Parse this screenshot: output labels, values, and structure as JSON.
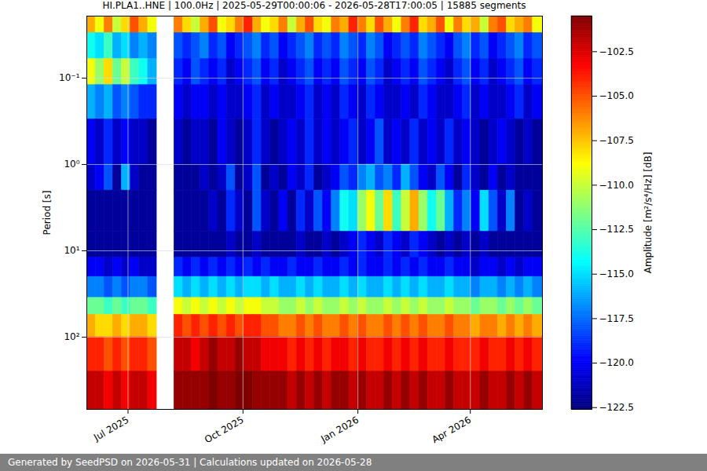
{
  "chart_data": {
    "type": "heatmap",
    "title": "HI.PLA1..HNE | 100.0Hz | 2025-05-29T00:00:06 - 2026-05-28T17:00:05 | 15885 segments",
    "footer": "Generated by SeedPSD on 2026-05-31 | Calculations updated on 2026-05-28",
    "ylabel": "Period [s]",
    "colorbar_label": "Amplitude [m²/s⁴/Hz] [dB]",
    "log": "y",
    "grid": true,
    "xlim": [
      "2025-05-29T00:00:06",
      "2026-05-28T17:00:05"
    ],
    "xticks": [
      {
        "value": "2025-07-01",
        "label": "Jul 2025"
      },
      {
        "value": "2025-10-01",
        "label": "Oct 2025"
      },
      {
        "value": "2026-01-01",
        "label": "Jan 2026"
      },
      {
        "value": "2026-04-01",
        "label": "Apr 2026"
      }
    ],
    "ylim": [
      0.0191,
      686
    ],
    "yticks": [
      {
        "value": 0.1,
        "label": "10⁻¹"
      },
      {
        "value": 1,
        "label": "10⁰"
      },
      {
        "value": 10,
        "label": "10¹"
      },
      {
        "value": 100,
        "label": "10²"
      }
    ],
    "x": [
      "2025-05-29",
      "2025-06-05",
      "2025-06-12",
      "2025-06-19",
      "2025-06-26",
      "2025-07-03",
      "2025-07-10",
      "2025-07-17",
      "2025-07-24",
      "2025-07-31",
      "2025-08-07",
      "2025-08-14",
      "2025-08-21",
      "2025-08-28",
      "2025-09-04",
      "2025-09-11",
      "2025-09-18",
      "2025-09-25",
      "2025-10-02",
      "2025-10-09",
      "2025-10-16",
      "2025-10-23",
      "2025-10-30",
      "2025-11-06",
      "2025-11-13",
      "2025-11-20",
      "2025-11-27",
      "2025-12-04",
      "2025-12-11",
      "2025-12-18",
      "2025-12-25",
      "2026-01-01",
      "2026-01-08",
      "2026-01-15",
      "2026-01-22",
      "2026-01-29",
      "2026-02-05",
      "2026-02-12",
      "2026-02-19",
      "2026-02-26",
      "2026-03-05",
      "2026-03-12",
      "2026-03-19",
      "2026-03-26",
      "2026-04-02",
      "2026-04-09",
      "2026-04-16",
      "2026-04-23",
      "2026-04-30",
      "2026-05-07",
      "2026-05-14",
      "2026-05-21"
    ],
    "y_bins": [
      0.0191,
      0.03,
      0.06,
      0.12,
      0.3,
      1,
      2,
      6,
      12,
      20,
      35,
      55,
      100,
      250,
      686
    ],
    "values": [
      [
        -107,
        -109,
        -106,
        -110,
        -108,
        -105,
        -107,
        -109,
        null,
        null,
        -106,
        -108,
        -110,
        -107,
        -105,
        -109,
        -108,
        -106,
        -104,
        -107,
        -109,
        -108,
        -106,
        -110,
        -107,
        -105,
        -108,
        -109,
        -106,
        -107,
        -104,
        -106,
        -108,
        -105,
        -107,
        -109,
        -106,
        -104,
        -108,
        -107,
        -105,
        -109,
        -106,
        -108,
        -107,
        -110,
        -106,
        -105,
        -108,
        -107,
        -106,
        -109
      ],
      [
        -114,
        -115,
        -113,
        -116,
        -115,
        -117,
        -116,
        -117,
        null,
        null,
        -118,
        -119,
        -118,
        -117,
        -119,
        -118,
        -120,
        -119,
        -118,
        -117,
        -119,
        -118,
        -120,
        -119,
        -118,
        -117,
        -119,
        -118,
        -119,
        -117,
        -118,
        -119,
        -117,
        -118,
        -120,
        -119,
        -118,
        -119,
        -117,
        -118,
        -119,
        -120,
        -118,
        -117,
        -119,
        -118,
        -120,
        -119,
        -118,
        -117,
        -119,
        -118
      ],
      [
        -109,
        -111,
        -108,
        -112,
        -110,
        -113,
        -114,
        -116,
        null,
        null,
        -119,
        -120,
        -118,
        -119,
        -120,
        -119,
        -121,
        -120,
        -119,
        -118,
        -120,
        -119,
        -121,
        -120,
        -119,
        -118,
        -120,
        -119,
        -120,
        -118,
        -119,
        -120,
        -118,
        -119,
        -121,
        -120,
        -119,
        -120,
        -118,
        -119,
        -120,
        -121,
        -119,
        -118,
        -120,
        -119,
        -121,
        -120,
        -119,
        -118,
        -120,
        -119
      ],
      [
        -116,
        -117,
        -116,
        -118,
        -117,
        -118,
        -119,
        -119,
        null,
        null,
        -120,
        -121,
        -120,
        -120,
        -121,
        -120,
        -121,
        -121,
        -120,
        -119,
        -121,
        -120,
        -121,
        -121,
        -120,
        -119,
        -121,
        -120,
        -121,
        -119,
        -120,
        -121,
        -119,
        -120,
        -121,
        -121,
        -120,
        -121,
        -119,
        -120,
        -121,
        -121,
        -120,
        -119,
        -121,
        -120,
        -121,
        -121,
        -120,
        -119,
        -121,
        -120
      ],
      [
        -120,
        -121,
        -119,
        -121,
        -120,
        -121,
        -121,
        -122,
        null,
        null,
        -121,
        -122,
        -121,
        -121,
        -122,
        -120,
        -121,
        -122,
        -121,
        -119,
        -121,
        -122,
        -121,
        -120,
        -121,
        -119,
        -121,
        -120,
        -121,
        -120,
        -119,
        -121,
        -120,
        -118,
        -121,
        -120,
        -121,
        -119,
        -121,
        -120,
        -121,
        -119,
        -121,
        -120,
        -121,
        -122,
        -121,
        -120,
        -121,
        -122,
        -121,
        -122
      ],
      [
        -121,
        -120,
        -118,
        -122,
        -116,
        -121,
        -122,
        -122,
        null,
        null,
        -122,
        -122,
        -122,
        -121,
        -122,
        -121,
        -118,
        -122,
        -121,
        -118,
        -122,
        -121,
        -122,
        -120,
        -121,
        -119,
        -122,
        -121,
        -120,
        -118,
        -119,
        -117,
        -116,
        -118,
        -117,
        -119,
        -116,
        -118,
        -120,
        -121,
        -118,
        -120,
        -122,
        -119,
        -121,
        -122,
        -120,
        -122,
        -121,
        -122,
        -122,
        -122
      ],
      [
        -122,
        -122,
        -122,
        -122,
        -122,
        -122,
        -122,
        -122,
        null,
        null,
        -122,
        -122,
        -122,
        -122,
        -121,
        -122,
        -119,
        -121,
        -122,
        -118,
        -121,
        -122,
        -120,
        -122,
        -119,
        -121,
        -118,
        -120,
        -117,
        -114,
        -115,
        -111,
        -109,
        -112,
        -108,
        -113,
        -110,
        -107,
        -111,
        -114,
        -112,
        -116,
        -119,
        -117,
        -120,
        -115,
        -118,
        -121,
        -117,
        -122,
        -121,
        -122
      ],
      [
        -122,
        -122,
        -122,
        -122,
        -122,
        -122,
        -122,
        -122,
        null,
        null,
        -122,
        -122,
        -122,
        -122,
        -122,
        -122,
        -121,
        -122,
        -122,
        -121,
        -122,
        -122,
        -122,
        -122,
        -121,
        -122,
        -122,
        -121,
        -122,
        -121,
        -120,
        -119,
        -120,
        -121,
        -119,
        -120,
        -121,
        -119,
        -120,
        -121,
        -122,
        -121,
        -122,
        -121,
        -122,
        -121,
        -122,
        -122,
        -122,
        -122,
        -122,
        -122
      ],
      [
        -120,
        -120,
        -121,
        -120,
        -121,
        -120,
        -121,
        -121,
        null,
        null,
        -119,
        -120,
        -119,
        -120,
        -119,
        -120,
        -119,
        -120,
        -119,
        -120,
        -119,
        -120,
        -120,
        -119,
        -120,
        -120,
        -119,
        -120,
        -120,
        -119,
        -120,
        -119,
        -120,
        -120,
        -119,
        -120,
        -119,
        -120,
        -119,
        -120,
        -120,
        -119,
        -120,
        -120,
        -121,
        -120,
        -120,
        -121,
        -120,
        -121,
        -120,
        -120
      ],
      [
        -117,
        -117,
        -118,
        -117,
        -118,
        -117,
        -117,
        -118,
        null,
        null,
        -115,
        -116,
        -115,
        -116,
        -115,
        -116,
        -115,
        -116,
        -115,
        -115,
        -116,
        -115,
        -116,
        -116,
        -115,
        -116,
        -115,
        -116,
        -116,
        -115,
        -116,
        -115,
        -116,
        -116,
        -115,
        -116,
        -115,
        -116,
        -115,
        -116,
        -116,
        -115,
        -116,
        -116,
        -117,
        -116,
        -116,
        -117,
        -116,
        -117,
        -116,
        -117
      ],
      [
        -112,
        -112,
        -113,
        -112,
        -113,
        -112,
        -112,
        -113,
        null,
        null,
        -109,
        -110,
        -109,
        -110,
        -109,
        -110,
        -109,
        -110,
        -109,
        -109,
        -110,
        -110,
        -111,
        -111,
        -110,
        -111,
        -110,
        -111,
        -111,
        -110,
        -111,
        -110,
        -111,
        -111,
        -110,
        -111,
        -110,
        -111,
        -110,
        -111,
        -111,
        -110,
        -111,
        -111,
        -112,
        -111,
        -111,
        -112,
        -111,
        -112,
        -111,
        -112
      ],
      [
        -107,
        -108,
        -108,
        -107,
        -108,
        -107,
        -107,
        -108,
        null,
        null,
        -104,
        -105,
        -104,
        -105,
        -104,
        -105,
        -104,
        -105,
        -104,
        -104,
        -105,
        -105,
        -106,
        -106,
        -105,
        -106,
        -105,
        -106,
        -106,
        -105,
        -106,
        -105,
        -106,
        -106,
        -105,
        -106,
        -105,
        -106,
        -105,
        -106,
        -106,
        -105,
        -106,
        -106,
        -107,
        -106,
        -106,
        -107,
        -106,
        -107,
        -106,
        -107
      ],
      [
        -104,
        -104,
        -105,
        -104,
        -105,
        -104,
        -104,
        -105,
        null,
        null,
        -102,
        -102,
        -103,
        -102,
        -101,
        -102,
        -102,
        -101,
        -102,
        -102,
        -103,
        -103,
        -103,
        -104,
        -103,
        -104,
        -103,
        -104,
        -103,
        -103,
        -104,
        -103,
        -104,
        -104,
        -103,
        -104,
        -103,
        -104,
        -103,
        -104,
        -104,
        -103,
        -104,
        -104,
        -104,
        -103,
        -104,
        -104,
        -103,
        -104,
        -103,
        -104
      ],
      [
        -102,
        -102,
        -103,
        -102,
        -103,
        -102,
        -102,
        -103,
        null,
        null,
        -101,
        -101,
        -101,
        -101,
        -100.5,
        -101,
        -101,
        -100.5,
        -100.5,
        -101,
        -101,
        -101,
        -101,
        -102,
        -101,
        -102,
        -101,
        -102,
        -101,
        -101,
        -102,
        -101,
        -102,
        -102,
        -101,
        -102,
        -101,
        -102,
        -101,
        -102,
        -102,
        -101,
        -102,
        -102,
        -102,
        -101,
        -102,
        -102,
        -101,
        -102,
        -101,
        -102
      ]
    ],
    "colorbar_lim": [
      -122.6,
      -100.5
    ],
    "colorbar_ticks": [
      {
        "value": -102.5,
        "label": "−102.5"
      },
      {
        "value": -105,
        "label": "−105.0"
      },
      {
        "value": -107.5,
        "label": "−107.5"
      },
      {
        "value": -110,
        "label": "−110.0"
      },
      {
        "value": -112.5,
        "label": "−112.5"
      },
      {
        "value": -115,
        "label": "−115.0"
      },
      {
        "value": -117.5,
        "label": "−117.5"
      },
      {
        "value": -120,
        "label": "−120.0"
      },
      {
        "value": -122.5,
        "label": "−122.5"
      }
    ]
  }
}
